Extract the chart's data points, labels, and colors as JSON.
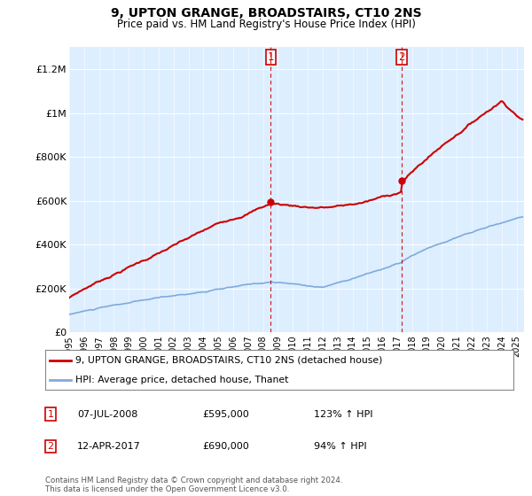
{
  "title": "9, UPTON GRANGE, BROADSTAIRS, CT10 2NS",
  "subtitle": "Price paid vs. HM Land Registry's House Price Index (HPI)",
  "legend_line1": "9, UPTON GRANGE, BROADSTAIRS, CT10 2NS (detached house)",
  "legend_line2": "HPI: Average price, detached house, Thanet",
  "annotation1_label": "1",
  "annotation1_date": "07-JUL-2008",
  "annotation1_price": "£595,000",
  "annotation1_hpi": "123% ↑ HPI",
  "annotation2_label": "2",
  "annotation2_date": "12-APR-2017",
  "annotation2_price": "£690,000",
  "annotation2_hpi": "94% ↑ HPI",
  "footnote": "Contains HM Land Registry data © Crown copyright and database right 2024.\nThis data is licensed under the Open Government Licence v3.0.",
  "sale1_x": 2008.52,
  "sale1_y": 595000,
  "sale2_x": 2017.28,
  "sale2_y": 690000,
  "vline1_x": 2008.52,
  "vline2_x": 2017.28,
  "property_color": "#cc0000",
  "hpi_color": "#7faadd",
  "vline_color": "#cc0000",
  "background_color": "#ddeeff",
  "ylim_min": 0,
  "ylim_max": 1300000,
  "xlim_min": 1995,
  "xlim_max": 2025.5,
  "yticks": [
    0,
    200000,
    400000,
    600000,
    800000,
    1000000,
    1200000
  ],
  "ytick_labels": [
    "£0",
    "£200K",
    "£400K",
    "£600K",
    "£800K",
    "£1M",
    "£1.2M"
  ],
  "xtick_years": [
    1995,
    1996,
    1997,
    1998,
    1999,
    2000,
    2001,
    2002,
    2003,
    2004,
    2005,
    2006,
    2007,
    2008,
    2009,
    2010,
    2011,
    2012,
    2013,
    2014,
    2015,
    2016,
    2017,
    2018,
    2019,
    2020,
    2021,
    2022,
    2023,
    2024,
    2025
  ]
}
